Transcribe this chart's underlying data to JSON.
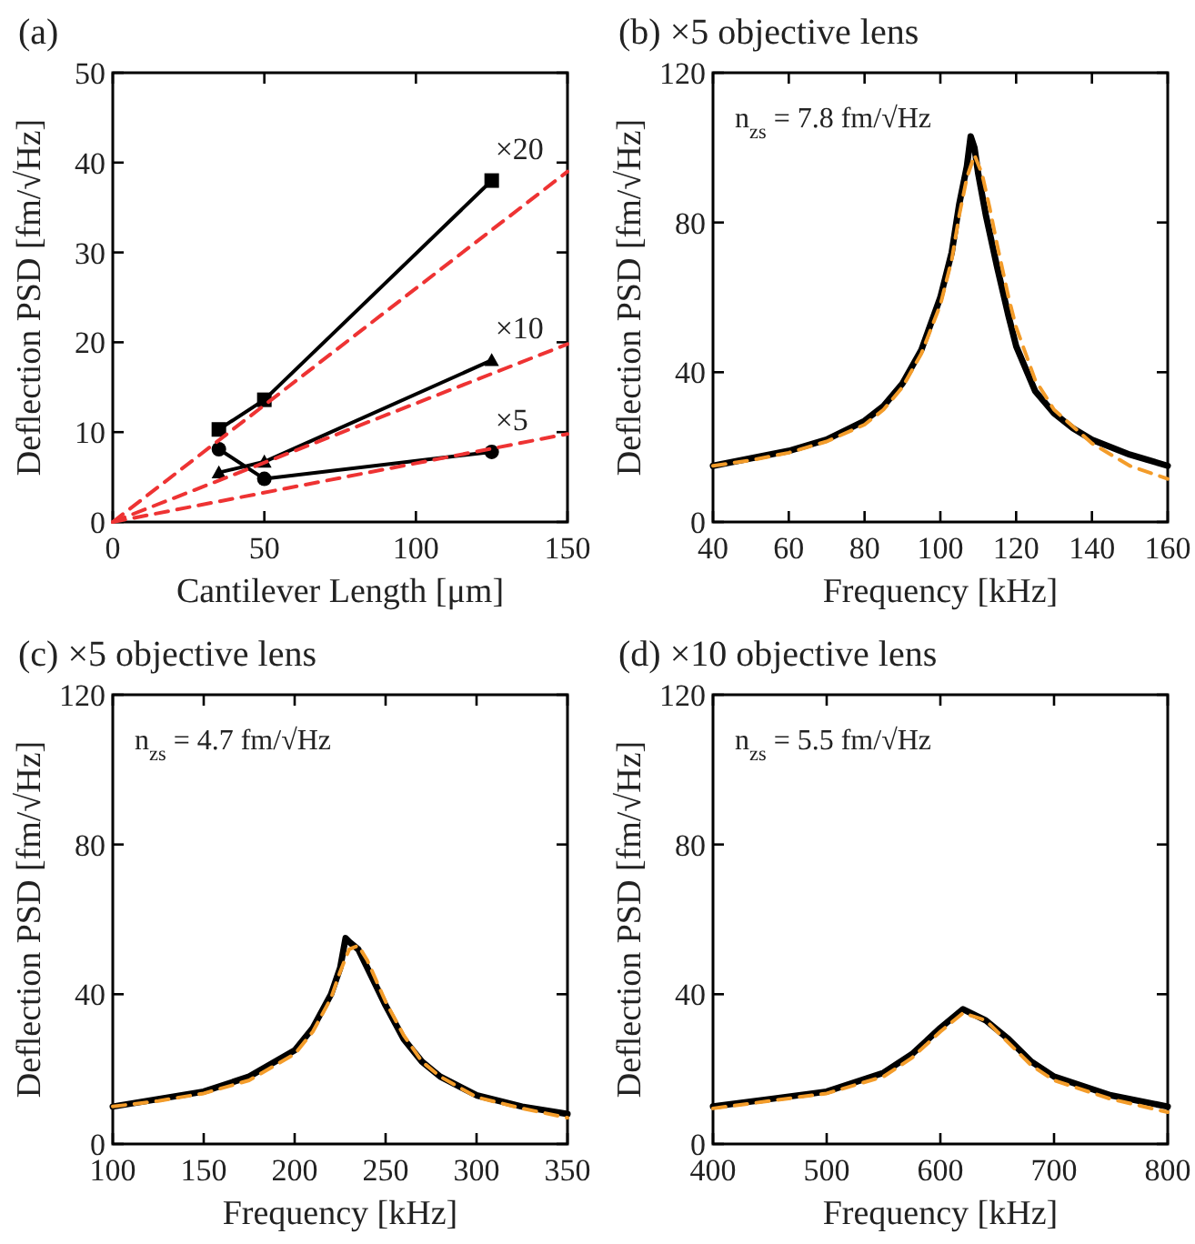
{
  "chart_data": [
    {
      "type": "line",
      "title": "(a)",
      "legend": "right",
      "xlabel": "Cantilever Length [μm]",
      "ylabel": "Deflection PSD [fm/√Hz]",
      "xlim": [
        0,
        150
      ],
      "ylim": [
        0,
        50
      ],
      "xticks": [
        0,
        50,
        100,
        150
      ],
      "yticks": [
        0,
        10,
        20,
        30,
        40,
        50
      ],
      "series": [
        {
          "name": "×20",
          "color": "#000000",
          "marker": "square",
          "x": [
            35,
            50,
            125
          ],
          "values": [
            10.3,
            13.6,
            38
          ]
        },
        {
          "name": "×10",
          "color": "#000000",
          "marker": "triangle",
          "x": [
            35,
            50,
            125
          ],
          "values": [
            5.5,
            6.7,
            18
          ]
        },
        {
          "name": "×5",
          "color": "#000000",
          "marker": "circle",
          "x": [
            35,
            50,
            125
          ],
          "values": [
            8.1,
            4.8,
            7.8
          ]
        },
        {
          "color": "#ee3333",
          "line_style": "dashed",
          "x": [
            0,
            150
          ],
          "values": [
            0,
            39
          ]
        },
        {
          "color": "#ee3333",
          "line_style": "dashed",
          "x": [
            0,
            150
          ],
          "values": [
            0,
            19.8
          ]
        },
        {
          "color": "#ee3333",
          "line_style": "dashed",
          "x": [
            0,
            150
          ],
          "values": [
            0,
            9.8
          ]
        }
      ]
    },
    {
      "type": "line",
      "title": "(b) ×5 objective lens",
      "xlabel": "Frequency [kHz]",
      "ylabel": "Deflection PSD [fm/√Hz]",
      "xlim": [
        40,
        160
      ],
      "ylim": [
        0,
        120
      ],
      "xticks": [
        40,
        60,
        80,
        100,
        120,
        140,
        160
      ],
      "yticks": [
        0,
        40,
        80,
        120
      ],
      "annotations": [
        "n$_{zs}$ = 7.8 fm/√Hz"
      ],
      "series": [
        {
          "color": "#000000",
          "x": [
            40,
            50,
            60,
            70,
            80,
            85,
            90,
            95,
            100,
            103,
            105,
            107,
            108,
            109,
            110,
            112,
            115,
            118,
            120,
            125,
            130,
            135,
            140,
            150,
            160
          ],
          "values": [
            15,
            17,
            19,
            22,
            27,
            31,
            37,
            46,
            60,
            72,
            85,
            95,
            103,
            100,
            93,
            82,
            68,
            55,
            47,
            35,
            29,
            25,
            22,
            18,
            15
          ]
        },
        {
          "color": "#f39c2a",
          "line_style": "dashed",
          "x": [
            40,
            50,
            60,
            70,
            80,
            85,
            90,
            95,
            100,
            103,
            105,
            107,
            109,
            111,
            113,
            115,
            118,
            120,
            125,
            130,
            140,
            150,
            160
          ],
          "values": [
            15,
            16.5,
            18.5,
            21.5,
            26,
            30,
            36,
            45,
            58,
            70,
            82,
            92,
            98,
            93,
            84,
            74,
            60,
            52,
            38,
            30,
            21,
            15,
            11.5
          ]
        }
      ]
    },
    {
      "type": "line",
      "title": "(c) ×5 objective lens",
      "xlabel": "Frequency [kHz]",
      "ylabel": "Deflection PSD [fm/√Hz]",
      "xlim": [
        100,
        350
      ],
      "ylim": [
        0,
        120
      ],
      "xticks": [
        100,
        150,
        200,
        250,
        300,
        350
      ],
      "yticks": [
        0,
        40,
        80,
        120
      ],
      "annotations": [
        "n$_{zs}$ = 4.7 fm/√Hz"
      ],
      "series": [
        {
          "color": "#000000",
          "x": [
            100,
            125,
            150,
            175,
            200,
            210,
            220,
            225,
            228,
            230,
            235,
            240,
            250,
            260,
            270,
            280,
            300,
            325,
            350
          ],
          "values": [
            10,
            12,
            14,
            18,
            25,
            31,
            40,
            47,
            55,
            54,
            52,
            47,
            37,
            28,
            22,
            18,
            13,
            10,
            8
          ]
        },
        {
          "color": "#f39c2a",
          "line_style": "dashed",
          "x": [
            100,
            125,
            150,
            175,
            200,
            210,
            220,
            225,
            230,
            235,
            240,
            250,
            260,
            270,
            280,
            300,
            325,
            350
          ],
          "values": [
            10,
            11.5,
            13.5,
            17,
            24,
            30,
            39,
            46,
            52,
            53,
            49,
            38,
            29,
            22,
            18,
            12.5,
            9.5,
            7
          ]
        }
      ]
    },
    {
      "type": "line",
      "title": "(d) ×10 objective lens",
      "xlabel": "Frequency [kHz]",
      "ylabel": "Deflection PSD [fm/√Hz]",
      "xlim": [
        400,
        800
      ],
      "ylim": [
        0,
        120
      ],
      "xticks": [
        400,
        500,
        600,
        700,
        800
      ],
      "yticks": [
        0,
        40,
        80,
        120
      ],
      "annotations": [
        "n$_{zs}$ = 5.5 fm/√Hz"
      ],
      "series": [
        {
          "color": "#000000",
          "x": [
            400,
            450,
            500,
            550,
            575,
            600,
            620,
            640,
            660,
            680,
            700,
            750,
            800
          ],
          "values": [
            10,
            12,
            14,
            19,
            24,
            31,
            36,
            33,
            28,
            22,
            18,
            13,
            10
          ]
        },
        {
          "color": "#f39c2a",
          "line_style": "dashed",
          "x": [
            400,
            450,
            500,
            550,
            575,
            600,
            620,
            640,
            660,
            680,
            700,
            750,
            800
          ],
          "values": [
            9.5,
            11.5,
            13.5,
            18,
            23,
            30,
            35,
            33,
            27,
            21,
            17,
            12,
            8.5
          ]
        }
      ]
    }
  ]
}
